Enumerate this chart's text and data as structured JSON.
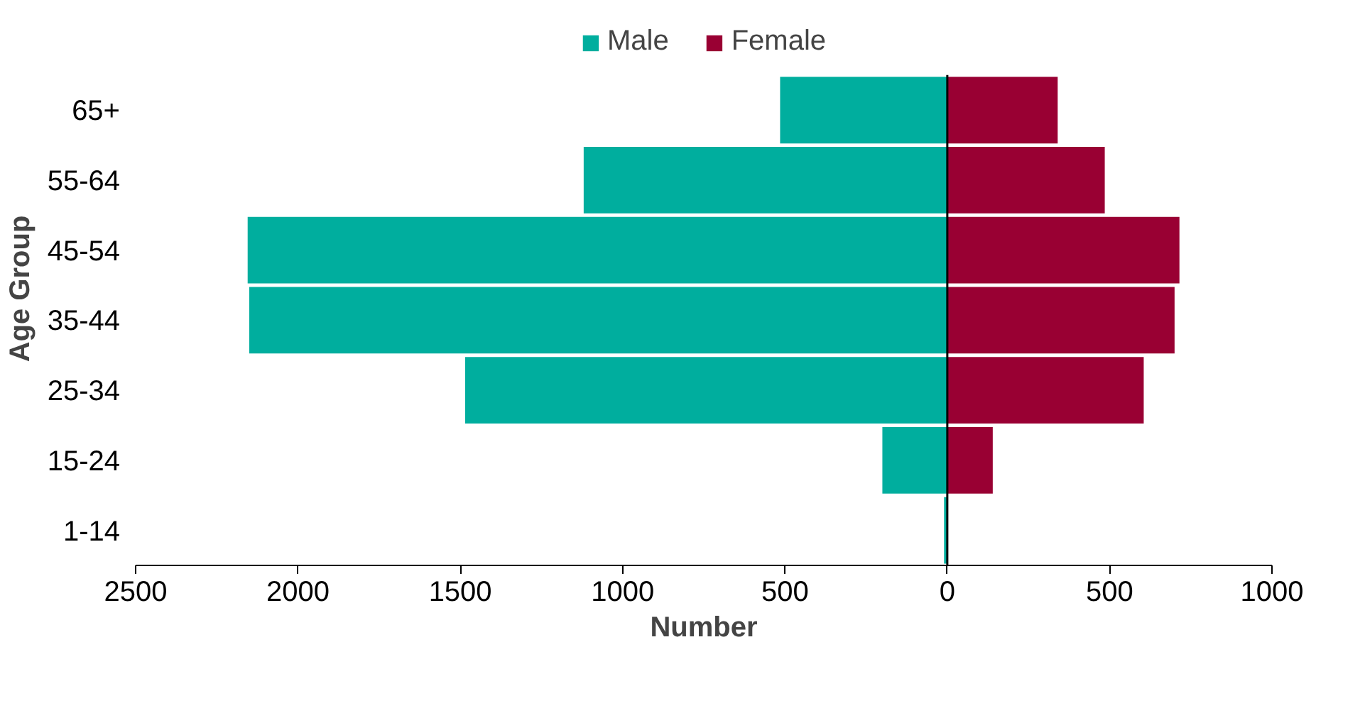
{
  "chart_data": {
    "type": "bar",
    "orientation": "horizontal",
    "stacked": true,
    "xlabel": "Number",
    "ylabel": "Age Group",
    "categories": [
      "65+",
      "55-64",
      "45-54",
      "35-44",
      "25-34",
      "15-24",
      "1-14"
    ],
    "series": [
      {
        "name": "Male",
        "color": "#00ae9e",
        "values": [
          -515,
          -1120,
          -2155,
          -2150,
          -1485,
          -200,
          -10
        ]
      },
      {
        "name": "Female",
        "color": "#990033",
        "values": [
          340,
          485,
          715,
          700,
          605,
          140,
          null
        ]
      }
    ],
    "xlim": [
      -2500,
      1000
    ],
    "xticks": [
      {
        "value": -2500,
        "label": "2500"
      },
      {
        "value": -2000,
        "label": "2000"
      },
      {
        "value": -1500,
        "label": "1500"
      },
      {
        "value": -1000,
        "label": "1000"
      },
      {
        "value": -500,
        "label": "500"
      },
      0,
      500,
      1000
    ],
    "ref_lines": [
      {
        "axis": "x",
        "value": 0,
        "color": "#000000"
      }
    ],
    "legend": "top",
    "grid": false
  }
}
